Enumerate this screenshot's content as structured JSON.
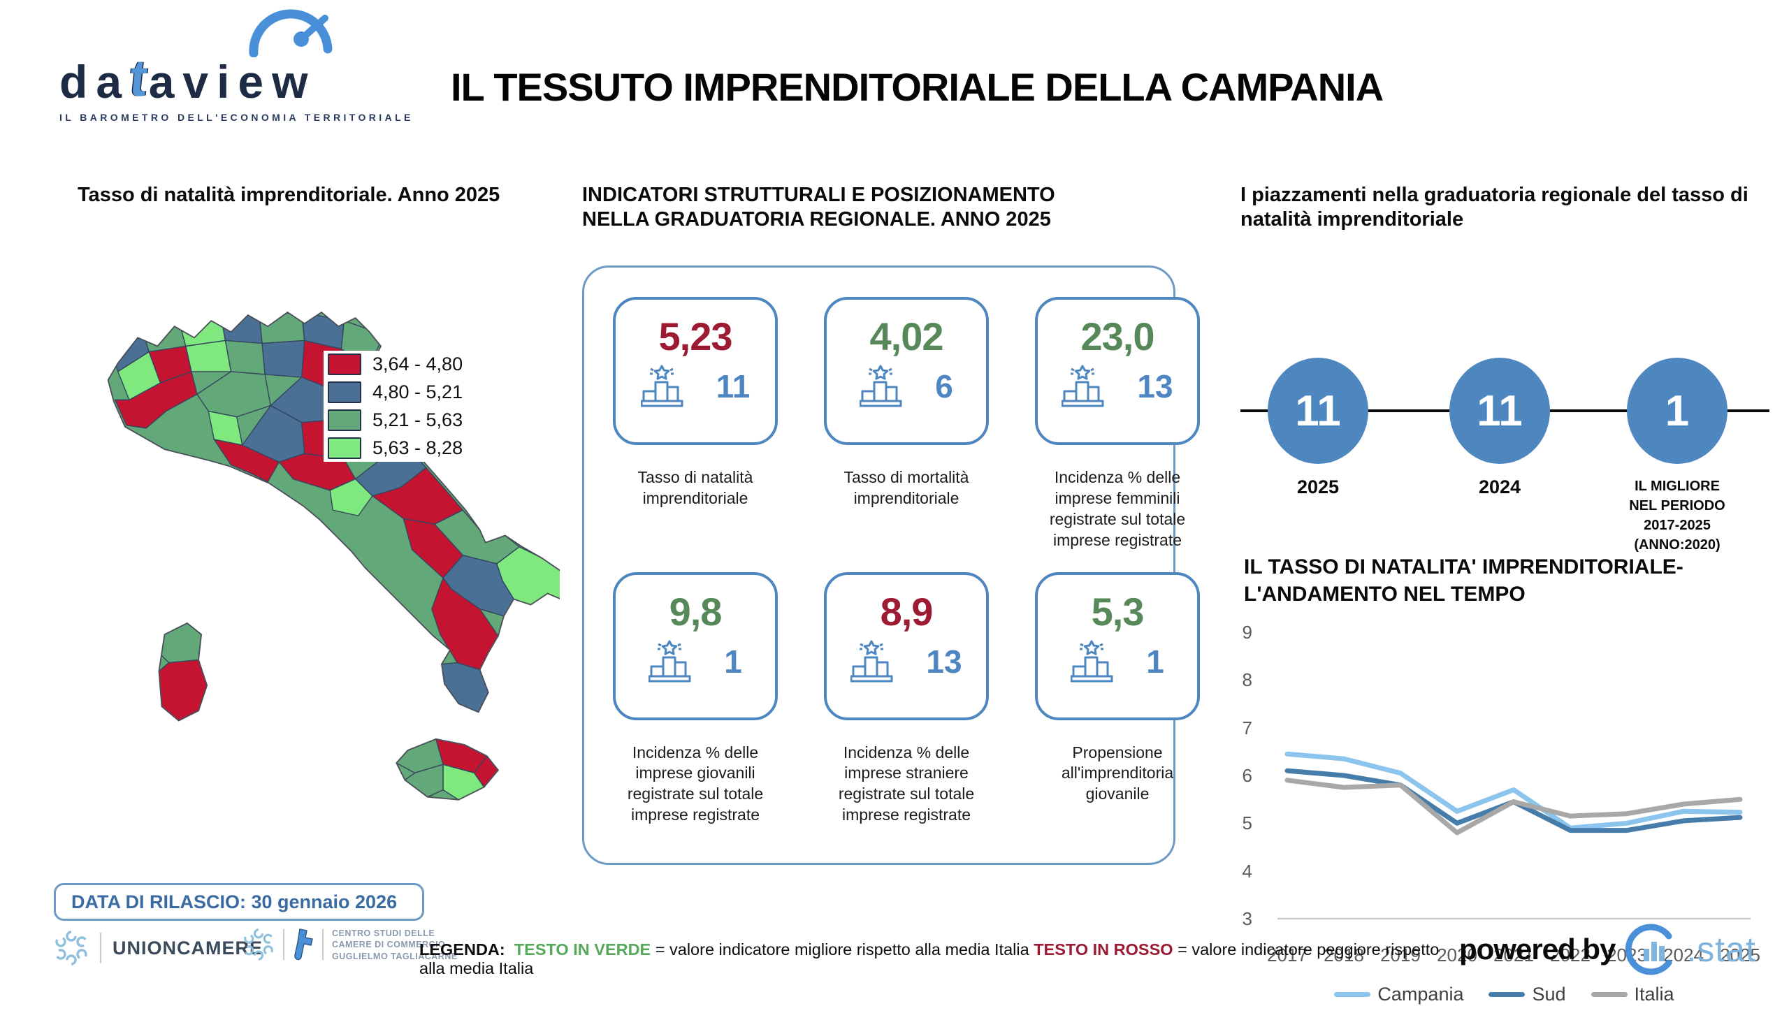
{
  "palette": {
    "accent_blue": "#4e86c0",
    "card_border": "#6d9ac4",
    "negative_red": "#9c1b33",
    "positive_green": "#56885a",
    "rank_blue": "#4d86c2"
  },
  "logo": {
    "part1": "da",
    "tglyph": "t",
    "part2": "aview",
    "tagline": "IL BAROMETRO DELL'ECONOMIA TERRITORIALE"
  },
  "header": {
    "title": "IL TESSUTO IMPRENDITORIALE DELLA CAMPANIA"
  },
  "map_panel": {
    "title": "Tasso di natalità imprenditoriale. Anno 2025",
    "legend": [
      {
        "label": "3,64 - 4,80",
        "color": "#c41432"
      },
      {
        "label": "4,80 - 5,21",
        "color": "#4a7096"
      },
      {
        "label": "5,21 - 5,63",
        "color": "#63a878"
      },
      {
        "label": "5,63 - 8,28",
        "color": "#7fe97f"
      }
    ]
  },
  "indicators": {
    "title": "INDICATORI STRUTTURALI E POSIZIONAMENTO NELLA GRADUATORIA REGIONALE. ANNO 2025",
    "cards": [
      {
        "value": "5,23",
        "tone": "red",
        "rank": "11",
        "label": "Tasso di natalità imprenditoriale"
      },
      {
        "value": "4,02",
        "tone": "green",
        "rank": "6",
        "label": "Tasso di mortalità imprenditoriale"
      },
      {
        "value": "23,0",
        "tone": "green",
        "rank": "13",
        "label": "Incidenza % delle imprese femminili registrate sul totale imprese registrate"
      },
      {
        "value": "9,8",
        "tone": "green",
        "rank": "1",
        "label": "Incidenza % delle imprese giovanili registrate sul totale imprese registrate"
      },
      {
        "value": "8,9",
        "tone": "red",
        "rank": "13",
        "label": "Incidenza % delle imprese straniere registrate sul totale imprese registrate"
      },
      {
        "value": "5,3",
        "tone": "green",
        "rank": "1",
        "label": "Propensione all'imprenditoria giovanile"
      }
    ]
  },
  "ranking": {
    "title": "I piazzamenti nella graduatoria regionale del tasso di natalità imprenditoriale",
    "circle_color": "#4e86c0",
    "milestones": [
      {
        "value": "11",
        "label": "2025"
      },
      {
        "value": "11",
        "label": "2024"
      },
      {
        "value": "1",
        "label": "IL MIGLIORE\nNEL PERIODO\n2017-2025\n(ANNO:2020)"
      }
    ]
  },
  "chart_data": {
    "type": "line",
    "title": "IL TASSO DI NATALITA' IMPRENDITORIALE-\nL'ANDAMENTO NEL TEMPO",
    "x": [
      2017,
      2018,
      2019,
      2020,
      2021,
      2022,
      2023,
      2024,
      2025
    ],
    "series": [
      {
        "name": "Campania",
        "color": "#8bc4ec",
        "values": [
          6.45,
          6.35,
          6.05,
          5.25,
          5.7,
          4.9,
          5.0,
          5.25,
          5.23
        ]
      },
      {
        "name": "Sud",
        "color": "#467ca9",
        "values": [
          6.1,
          6.0,
          5.8,
          5.0,
          5.45,
          4.85,
          4.85,
          5.05,
          5.12
        ]
      },
      {
        "name": "Italia",
        "color": "#a8a8a8",
        "values": [
          5.9,
          5.75,
          5.8,
          4.8,
          5.45,
          5.15,
          5.2,
          5.4,
          5.5
        ]
      }
    ],
    "ylim": [
      3,
      9
    ],
    "yticks": [
      3,
      4,
      5,
      6,
      7,
      8,
      9
    ],
    "grid": false,
    "legend_position": "bottom"
  },
  "release": {
    "text": "DATA DI RILASCIO: 30 gennaio 2026"
  },
  "footer": {
    "unioncamere": "UNIONCAMERE",
    "tagliacarne": "CENTRO STUDI DELLE\nCAMERE DI COMMERCIO\nGUGLIELMO TAGLIACARNE",
    "legenda_prefix": "LEGENDA:",
    "green_label": "TESTO IN VERDE",
    "green_text": "= valore indicatore migliore rispetto alla media Italia",
    "red_label": "TESTO IN ROSSO",
    "red_text": "= valore indicatore peggiore rispetto alla media Italia",
    "powered_by": "powered by",
    "stat": ".stat"
  }
}
